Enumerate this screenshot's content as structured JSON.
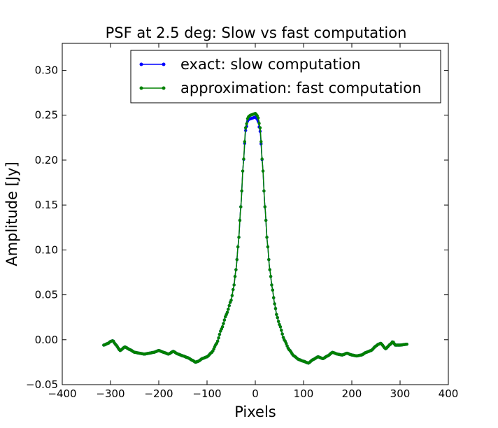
{
  "chart_data": {
    "type": "line",
    "title": "PSF at 2.5 deg: Slow vs fast computation",
    "xlabel": "Pixels",
    "ylabel": "Amplitude [Jy]",
    "xlim": [
      -400,
      400
    ],
    "ylim": [
      -0.05,
      0.33
    ],
    "xticks": [
      -400,
      -300,
      -200,
      -100,
      0,
      100,
      200,
      300,
      400
    ],
    "yticks": [
      -0.05,
      0.0,
      0.05,
      0.1,
      0.15,
      0.2,
      0.25,
      0.3
    ],
    "xtick_labels": [
      "−400",
      "−300",
      "−200",
      "−100",
      "0",
      "100",
      "200",
      "300",
      "400"
    ],
    "ytick_labels": [
      "−0.05",
      "0.00",
      "0.05",
      "0.10",
      "0.15",
      "0.20",
      "0.25",
      "0.30"
    ],
    "grid": false,
    "legend_position": "top-right",
    "series": [
      {
        "name": "exact: slow computation",
        "color": "#0000ff",
        "x": [
          -314,
          -305,
          -300,
          -295,
          -290,
          -280,
          -270,
          -260,
          -250,
          -240,
          -230,
          -220,
          -210,
          -200,
          -190,
          -180,
          -170,
          -160,
          -150,
          -140,
          -130,
          -124,
          -118,
          -110,
          -100,
          -90,
          -80,
          -70,
          -60,
          -50,
          -45,
          -40,
          -35,
          -30,
          -25,
          -20,
          -15,
          -10,
          -5,
          0,
          5,
          10,
          15,
          20,
          25,
          30,
          35,
          40,
          45,
          50,
          60,
          70,
          80,
          90,
          100,
          110,
          120,
          130,
          140,
          150,
          160,
          170,
          180,
          190,
          200,
          210,
          220,
          230,
          240,
          250,
          255,
          260,
          270,
          280,
          285,
          290,
          300,
          314
        ],
        "y": [
          -0.006,
          -0.004,
          -0.002,
          -0.001,
          -0.005,
          -0.012,
          -0.008,
          -0.011,
          -0.014,
          -0.015,
          -0.016,
          -0.015,
          -0.014,
          -0.012,
          -0.014,
          -0.016,
          -0.013,
          -0.016,
          -0.018,
          -0.02,
          -0.023,
          -0.025,
          -0.024,
          -0.021,
          -0.019,
          -0.014,
          -0.004,
          0.012,
          0.028,
          0.044,
          0.058,
          0.078,
          0.108,
          0.148,
          0.195,
          0.233,
          0.245,
          0.246,
          0.247,
          0.248,
          0.245,
          0.232,
          0.195,
          0.148,
          0.108,
          0.078,
          0.058,
          0.04,
          0.026,
          0.017,
          0.0,
          -0.011,
          -0.018,
          -0.022,
          -0.024,
          -0.026,
          -0.022,
          -0.019,
          -0.021,
          -0.018,
          -0.014,
          -0.016,
          -0.017,
          -0.015,
          -0.017,
          -0.018,
          -0.017,
          -0.014,
          -0.012,
          -0.007,
          -0.005,
          -0.004,
          -0.01,
          -0.005,
          -0.002,
          -0.006,
          -0.006,
          -0.005
        ]
      },
      {
        "name": "approximation: fast computation",
        "color": "#008000",
        "x": [
          -314,
          -305,
          -300,
          -295,
          -290,
          -280,
          -270,
          -260,
          -250,
          -240,
          -230,
          -220,
          -210,
          -200,
          -190,
          -180,
          -170,
          -160,
          -150,
          -140,
          -130,
          -124,
          -118,
          -110,
          -100,
          -90,
          -80,
          -70,
          -60,
          -50,
          -45,
          -40,
          -35,
          -30,
          -25,
          -20,
          -15,
          -10,
          -5,
          0,
          5,
          10,
          15,
          20,
          25,
          30,
          35,
          40,
          45,
          50,
          60,
          70,
          80,
          90,
          100,
          110,
          120,
          130,
          140,
          150,
          160,
          170,
          180,
          190,
          200,
          210,
          220,
          230,
          240,
          250,
          255,
          260,
          270,
          280,
          285,
          290,
          300,
          314
        ],
        "y": [
          -0.006,
          -0.004,
          -0.002,
          -0.001,
          -0.005,
          -0.012,
          -0.008,
          -0.011,
          -0.014,
          -0.015,
          -0.016,
          -0.015,
          -0.014,
          -0.012,
          -0.014,
          -0.016,
          -0.013,
          -0.016,
          -0.018,
          -0.02,
          -0.023,
          -0.025,
          -0.024,
          -0.021,
          -0.019,
          -0.014,
          -0.004,
          0.012,
          0.028,
          0.044,
          0.058,
          0.078,
          0.108,
          0.148,
          0.195,
          0.236,
          0.248,
          0.25,
          0.251,
          0.252,
          0.249,
          0.236,
          0.195,
          0.148,
          0.108,
          0.078,
          0.058,
          0.04,
          0.026,
          0.017,
          0.0,
          -0.011,
          -0.018,
          -0.022,
          -0.024,
          -0.026,
          -0.022,
          -0.019,
          -0.021,
          -0.018,
          -0.014,
          -0.016,
          -0.017,
          -0.015,
          -0.017,
          -0.018,
          -0.017,
          -0.014,
          -0.012,
          -0.007,
          -0.005,
          -0.004,
          -0.01,
          -0.005,
          -0.002,
          -0.006,
          -0.006,
          -0.005
        ]
      }
    ]
  }
}
